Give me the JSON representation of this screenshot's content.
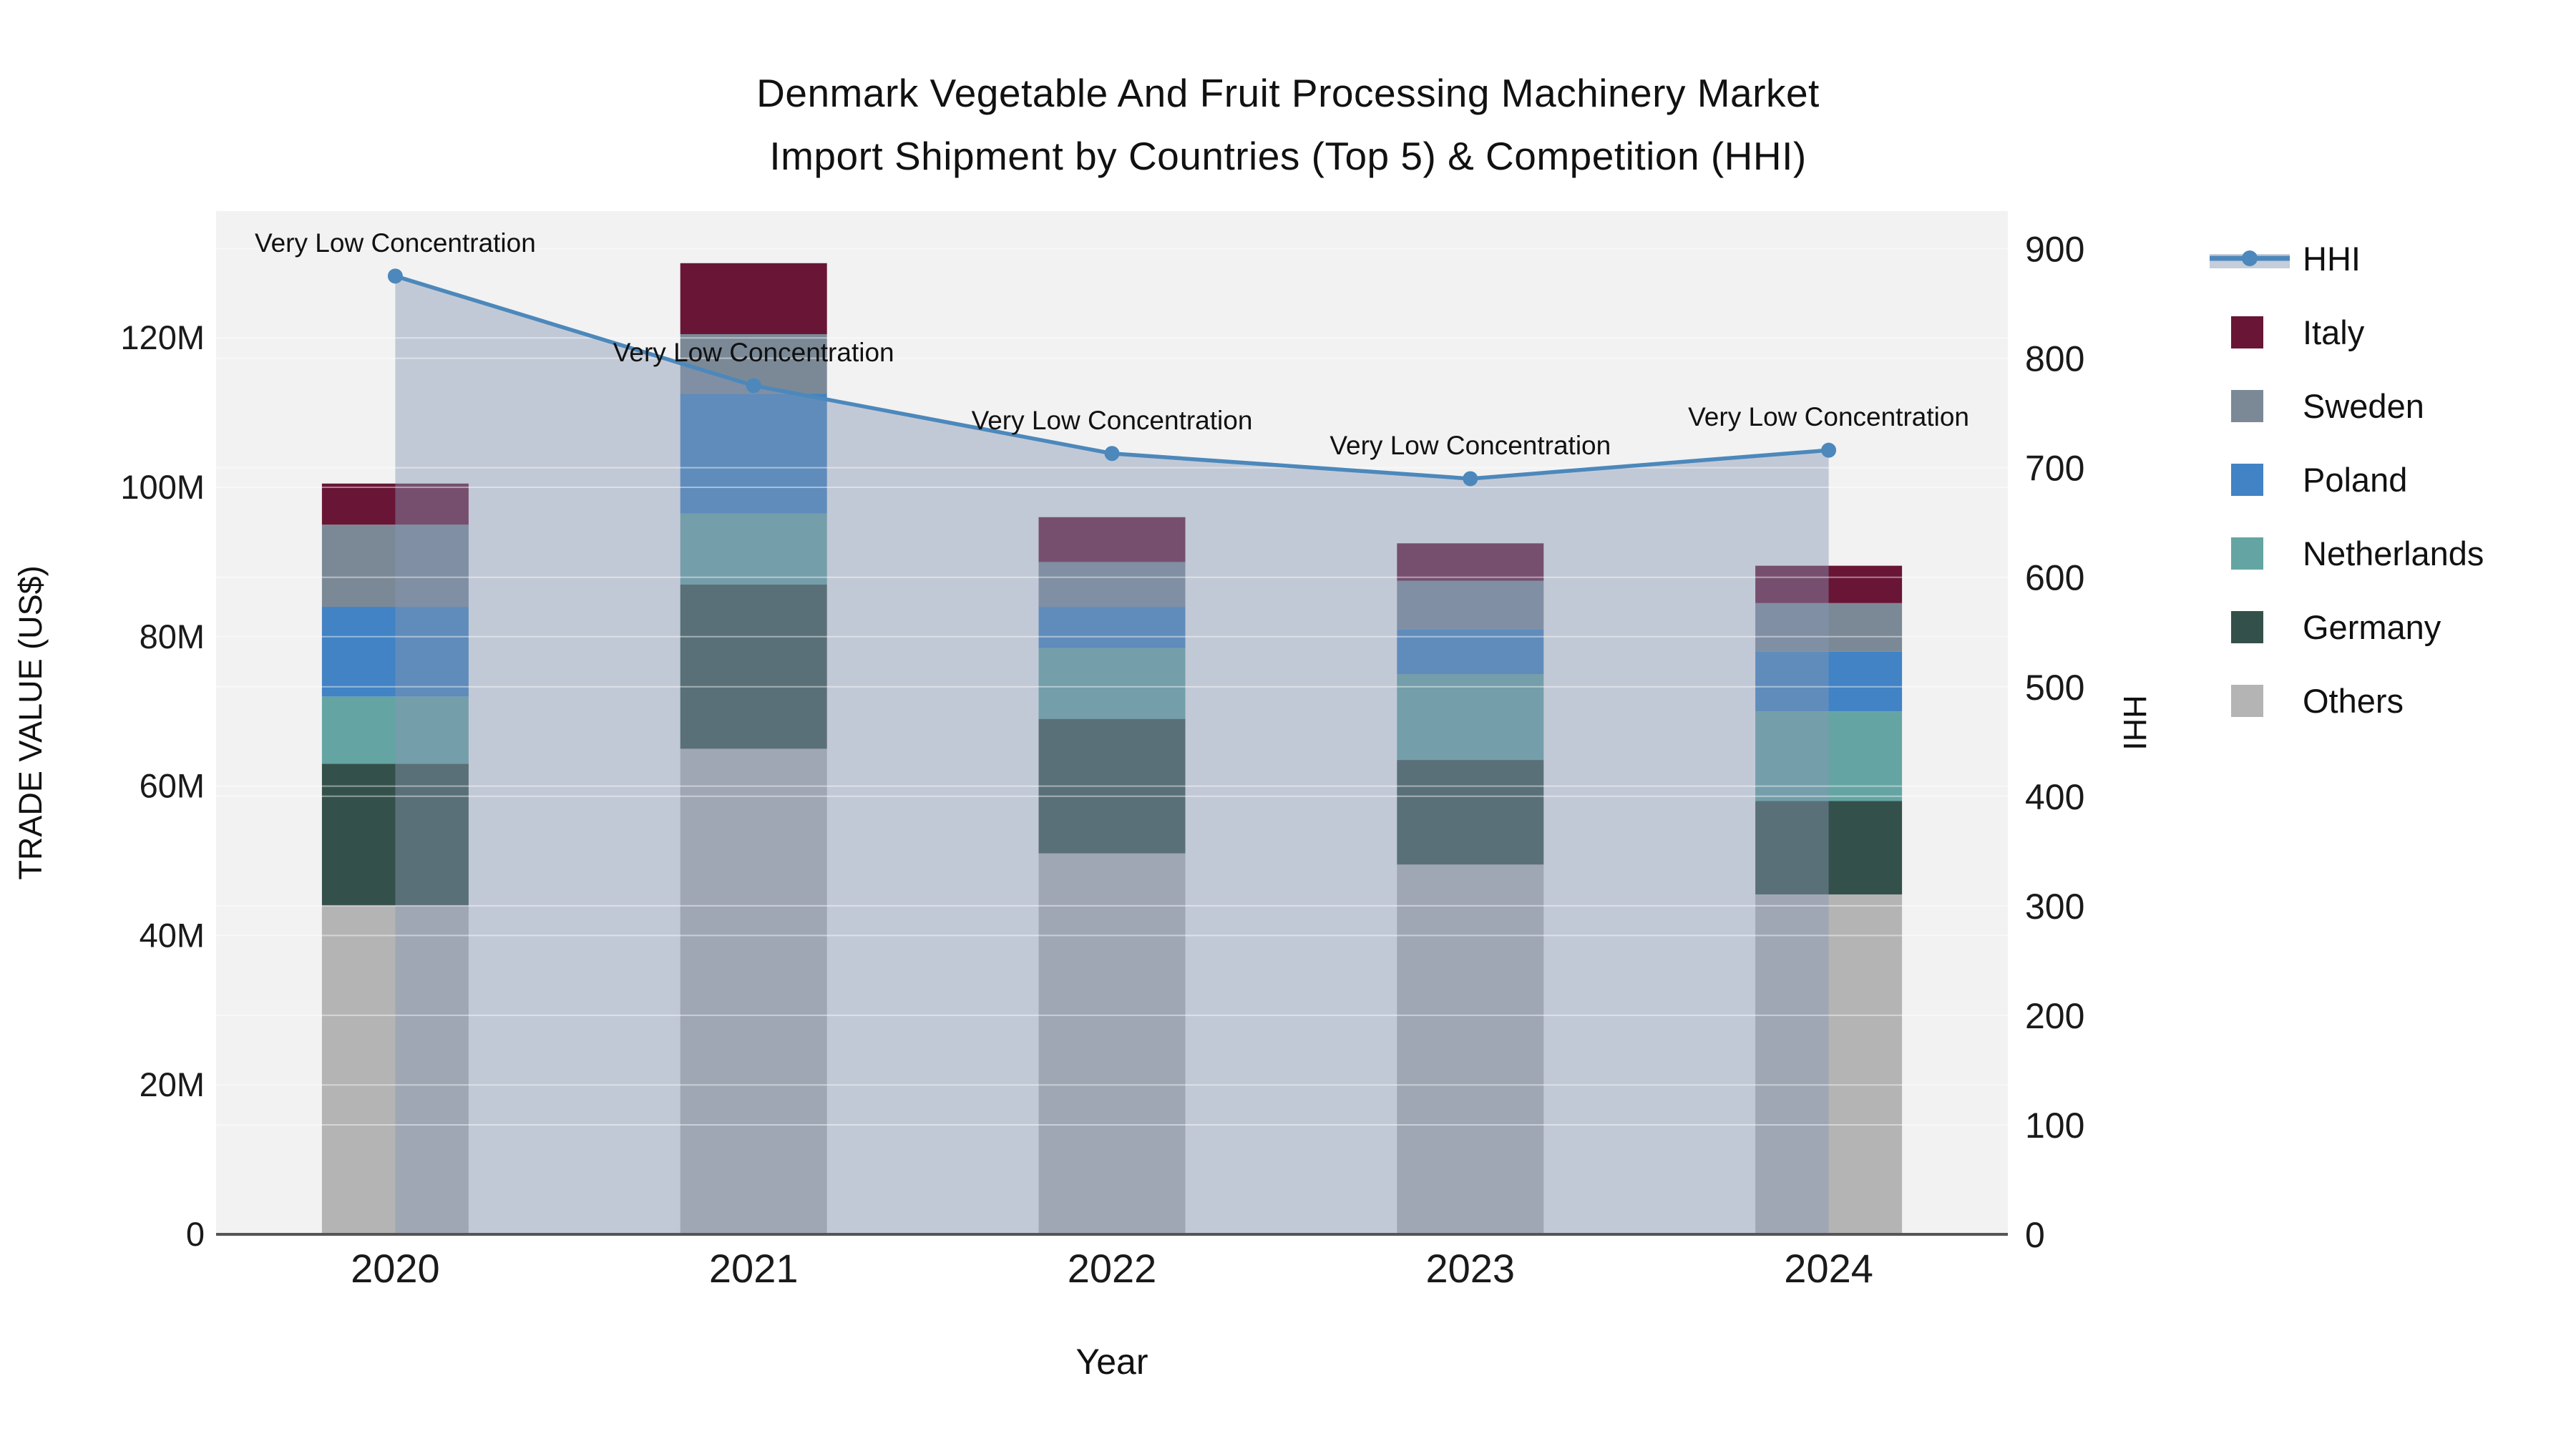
{
  "title": {
    "line1": "Denmark Vegetable And Fruit Processing Machinery Market",
    "line2": "Import Shipment by Countries (Top 5) & Competition (HHI)"
  },
  "axes": {
    "x_label": "Year",
    "y_left_label": "TRADE VALUE (US$)",
    "y_right_label": "HHI",
    "y_left_ticks": [
      {
        "value": 0,
        "label": "0"
      },
      {
        "value": 20,
        "label": "20M"
      },
      {
        "value": 40,
        "label": "40M"
      },
      {
        "value": 60,
        "label": "60M"
      },
      {
        "value": 80,
        "label": "80M"
      },
      {
        "value": 100,
        "label": "100M"
      },
      {
        "value": 120,
        "label": "120M"
      }
    ],
    "y_right_ticks": [
      {
        "value": 0,
        "label": "0"
      },
      {
        "value": 100,
        "label": "100"
      },
      {
        "value": 200,
        "label": "200"
      },
      {
        "value": 300,
        "label": "300"
      },
      {
        "value": 400,
        "label": "400"
      },
      {
        "value": 500,
        "label": "500"
      },
      {
        "value": 600,
        "label": "600"
      },
      {
        "value": 700,
        "label": "700"
      },
      {
        "value": 800,
        "label": "800"
      },
      {
        "value": 900,
        "label": "900"
      }
    ]
  },
  "annotations": [
    {
      "year": "2020",
      "text": "Very Low Concentration"
    },
    {
      "year": "2021",
      "text": "Very Low Concentration"
    },
    {
      "year": "2022",
      "text": "Very Low Concentration"
    },
    {
      "year": "2023",
      "text": "Very Low Concentration"
    },
    {
      "year": "2024",
      "text": "Very Low Concentration"
    }
  ],
  "legend": {
    "items": [
      {
        "label": "HHI",
        "type": "line",
        "color": "#4c88bb",
        "band_color": "#c5cdda"
      },
      {
        "label": "Italy",
        "type": "swatch",
        "color": "#691536"
      },
      {
        "label": "Sweden",
        "type": "swatch",
        "color": "#7b8997"
      },
      {
        "label": "Poland",
        "type": "swatch",
        "color": "#4183c4"
      },
      {
        "label": "Netherlands",
        "type": "swatch",
        "color": "#64a5a3"
      },
      {
        "label": "Germany",
        "type": "swatch",
        "color": "#34504a"
      },
      {
        "label": "Others",
        "type": "swatch",
        "color": "#b4b4b5"
      }
    ]
  },
  "chart_data": {
    "type": "bar",
    "subtype": "stacked-bars-with-line-overlay",
    "categories": [
      "2020",
      "2021",
      "2022",
      "2023",
      "2024"
    ],
    "value_unit": "million US$",
    "series": [
      {
        "name": "Italy",
        "color": "#691536",
        "values": [
          5.5,
          9.5,
          6.0,
          5.0,
          5.0
        ]
      },
      {
        "name": "Sweden",
        "color": "#7b8997",
        "values": [
          11.0,
          8.0,
          6.0,
          6.5,
          6.5
        ]
      },
      {
        "name": "Poland",
        "color": "#4183c4",
        "values": [
          12.0,
          16.0,
          5.5,
          6.0,
          8.0
        ]
      },
      {
        "name": "Netherlands",
        "color": "#64a5a3",
        "values": [
          9.0,
          9.5,
          9.5,
          11.5,
          12.0
        ]
      },
      {
        "name": "Germany",
        "color": "#34504a",
        "values": [
          19.0,
          22.0,
          18.0,
          14.0,
          12.5
        ]
      },
      {
        "name": "Others",
        "color": "#b4b4b5",
        "values": [
          44.0,
          65.0,
          51.0,
          49.5,
          45.5
        ]
      }
    ],
    "bar_totals": [
      100.5,
      130.0,
      96.0,
      92.5,
      89.5
    ],
    "line_series": {
      "name": "HHI",
      "axis": "right",
      "color": "#4c88bb",
      "fill_color_rgba": "rgba(135,150,180,0.45)",
      "values": [
        875,
        775,
        713,
        690,
        716
      ]
    },
    "title": "Denmark Vegetable And Fruit Processing Machinery Market Import Shipment by Countries (Top 5) & Competition (HHI)",
    "xlabel": "Year",
    "ylabel_left": "TRADE VALUE (US$)",
    "ylabel_right": "HHI",
    "ylim_left": [
      0,
      137
    ],
    "ylim_right": [
      0,
      934
    ],
    "grid": true,
    "legend_position": "right",
    "plot_bg": "#f2f2f2"
  }
}
